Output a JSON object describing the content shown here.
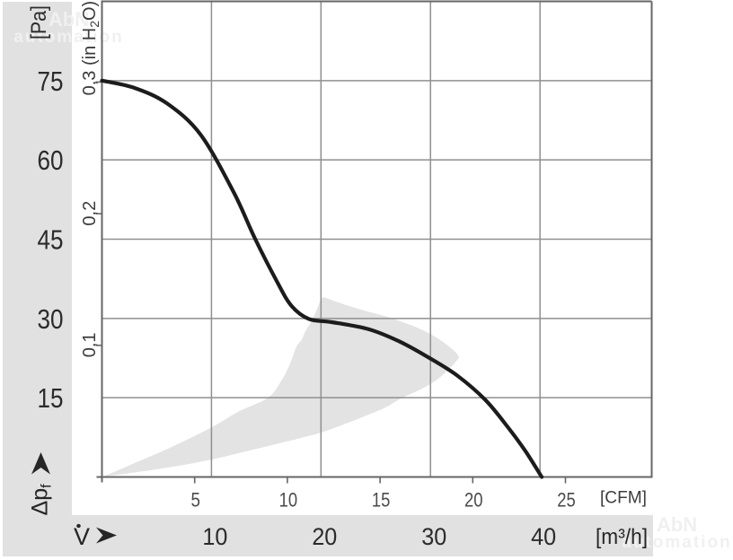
{
  "chart_data": {
    "type": "line",
    "x_axis": {
      "symbol": "V̇",
      "unit": "[m³/h]",
      "tick_values": [
        10,
        20,
        30,
        40
      ],
      "tick_labels": [
        "10",
        "20",
        "30",
        "40"
      ],
      "range": [
        0,
        50.2
      ]
    },
    "x_axis_secondary": {
      "unit": "[CFM]",
      "tick_values": [
        5,
        10,
        15,
        20,
        25
      ],
      "tick_labels": [
        "5",
        "10",
        "15",
        "20",
        "25"
      ],
      "m3h_per_cfm": 1.693
    },
    "y_axis": {
      "symbol": "Δp",
      "symbol_sub": "f",
      "unit": "[Pa]",
      "tick_values": [
        15,
        30,
        45,
        60,
        75
      ],
      "tick_labels": [
        "15",
        "30",
        "45",
        "60",
        "75"
      ],
      "range": [
        0,
        90
      ]
    },
    "y_axis_secondary": {
      "unit": "in H₂O",
      "tick_values": [
        0.1,
        0.2,
        0.3
      ],
      "tick_labels": [
        "0,1",
        "0,2",
        "0,3 (in H₂O)"
      ],
      "pa_per_inh2o": 249.1
    },
    "grid": true,
    "series": [
      {
        "name": "pressure-flow-curve",
        "color": "#1c1c1c",
        "points": [
          [
            0,
            75
          ],
          [
            3,
            73.6
          ],
          [
            6,
            70.6
          ],
          [
            9,
            64.8
          ],
          [
            12,
            54.0
          ],
          [
            14,
            45.0
          ],
          [
            16,
            36.9
          ],
          [
            17.3,
            32.4
          ],
          [
            18.9,
            29.9
          ],
          [
            21,
            29.3
          ],
          [
            24.3,
            28.0
          ],
          [
            27.2,
            25.6
          ],
          [
            30,
            22.4
          ],
          [
            32.5,
            19.1
          ],
          [
            35,
            14.6
          ],
          [
            37,
            9.6
          ],
          [
            38.7,
            4.8
          ],
          [
            40.16,
            0
          ]
        ]
      }
    ],
    "operating_range": {
      "color": "#e3e3e3",
      "upper_left_boundary": [
        [
          0.12,
          0.05
        ],
        [
          3.4,
          3.0
        ],
        [
          6.4,
          5.7
        ],
        [
          10.0,
          9.37
        ],
        [
          12.4,
          12.3
        ],
        [
          15.16,
          15.0
        ],
        [
          16.35,
          18.1
        ],
        [
          17.09,
          21.0
        ],
        [
          17.75,
          24.6
        ],
        [
          18.24,
          26.0
        ],
        [
          18.6,
          27.7
        ],
        [
          19.03,
          29.1
        ],
        [
          19.55,
          31.3
        ],
        [
          20.0,
          33.6
        ],
        [
          20.3,
          34.0
        ]
      ],
      "upper_right_boundary": [
        [
          20.3,
          34.0
        ],
        [
          22.34,
          32.5
        ],
        [
          24.3,
          31.3
        ],
        [
          26.27,
          30.2
        ],
        [
          27.99,
          28.9
        ],
        [
          29.38,
          27.7
        ],
        [
          30.7,
          26.2
        ],
        [
          31.68,
          24.7
        ],
        [
          32.34,
          23.5
        ],
        [
          32.62,
          22.6
        ]
      ],
      "lower_boundary": [
        [
          0.12,
          0.05
        ],
        [
          4.96,
          1.44
        ],
        [
          9.55,
          3.1
        ],
        [
          14.06,
          5.3
        ],
        [
          18.57,
          7.6
        ],
        [
          20.0,
          8.4
        ],
        [
          22.66,
          10.4
        ],
        [
          24.47,
          11.9
        ],
        [
          25.94,
          13.2
        ],
        [
          27.42,
          15.0
        ],
        [
          29.22,
          16.7
        ],
        [
          30.45,
          18.2
        ],
        [
          31.43,
          19.9
        ],
        [
          32.17,
          21.5
        ],
        [
          32.62,
          22.6
        ]
      ]
    },
    "colors": {
      "grid": "#8f8f8f",
      "frame": "#666666",
      "band": "#e1e1e1",
      "curve": "#1c1c1c",
      "text_dark": "#2b2b2b",
      "text_medium": "#4a4a4a"
    }
  },
  "watermark": {
    "line1": "AbN",
    "line2": "automation",
    "color": "#f0f0f0"
  }
}
